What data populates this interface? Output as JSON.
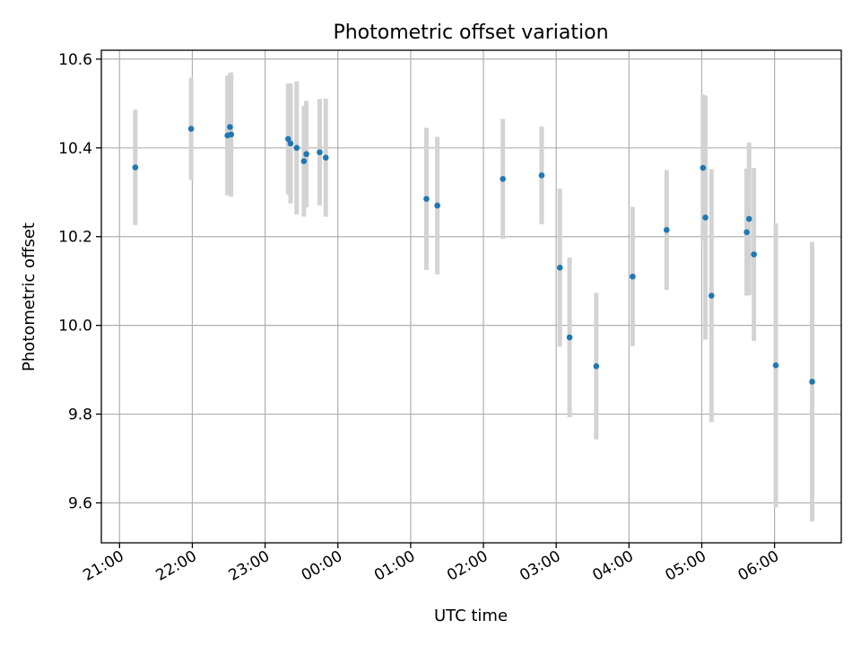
{
  "chart_data": {
    "type": "scatter",
    "title": "Photometric offset variation",
    "xlabel": "UTC time",
    "ylabel": "Photometric offset",
    "x_tick_labels": [
      "21:00",
      "22:00",
      "23:00",
      "00:00",
      "01:00",
      "02:00",
      "03:00",
      "04:00",
      "05:00",
      "06:00"
    ],
    "y_tick_labels": [
      "9.6",
      "9.8",
      "10.0",
      "10.2",
      "10.4",
      "10.6"
    ],
    "y_ticks": [
      9.6,
      9.8,
      10.0,
      10.2,
      10.4,
      10.6
    ],
    "xlim": [
      "20:45",
      "06:55"
    ],
    "ylim": [
      9.51,
      10.62
    ],
    "grid": true,
    "point_color": "#1f77b4",
    "errorbar_color": "#d3d3d3",
    "points": [
      {
        "time": "21:13",
        "y": 10.356,
        "err": 0.13
      },
      {
        "time": "21:59",
        "y": 10.443,
        "err": 0.115
      },
      {
        "time": "22:29",
        "y": 10.428,
        "err": 0.135
      },
      {
        "time": "22:31",
        "y": 10.447,
        "err": 0.12
      },
      {
        "time": "22:32",
        "y": 10.43,
        "err": 0.14
      },
      {
        "time": "23:19",
        "y": 10.42,
        "err": 0.125
      },
      {
        "time": "23:21",
        "y": 10.41,
        "err": 0.135
      },
      {
        "time": "23:26",
        "y": 10.4,
        "err": 0.15
      },
      {
        "time": "23:32",
        "y": 10.37,
        "err": 0.125
      },
      {
        "time": "23:34",
        "y": 10.386,
        "err": 0.12
      },
      {
        "time": "23:45",
        "y": 10.39,
        "err": 0.12
      },
      {
        "time": "23:50",
        "y": 10.378,
        "err": 0.133
      },
      {
        "time": "01:13",
        "y": 10.285,
        "err": 0.16
      },
      {
        "time": "01:22",
        "y": 10.27,
        "err": 0.155
      },
      {
        "time": "02:16",
        "y": 10.33,
        "err": 0.135
      },
      {
        "time": "02:48",
        "y": 10.338,
        "err": 0.11
      },
      {
        "time": "03:03",
        "y": 10.13,
        "err": 0.178
      },
      {
        "time": "03:11",
        "y": 9.973,
        "err": 0.18
      },
      {
        "time": "03:33",
        "y": 9.908,
        "err": 0.165
      },
      {
        "time": "04:03",
        "y": 10.11,
        "err": 0.157
      },
      {
        "time": "04:31",
        "y": 10.215,
        "err": 0.135
      },
      {
        "time": "05:01",
        "y": 10.355,
        "err": 0.165
      },
      {
        "time": "05:03",
        "y": 10.243,
        "err": 0.275
      },
      {
        "time": "05:08",
        "y": 10.067,
        "err": 0.285
      },
      {
        "time": "05:37",
        "y": 10.21,
        "err": 0.143
      },
      {
        "time": "05:39",
        "y": 10.24,
        "err": 0.172
      },
      {
        "time": "05:43",
        "y": 10.16,
        "err": 0.195
      },
      {
        "time": "06:01",
        "y": 9.91,
        "err": 0.32
      },
      {
        "time": "06:31",
        "y": 9.873,
        "err": 0.315
      }
    ]
  }
}
